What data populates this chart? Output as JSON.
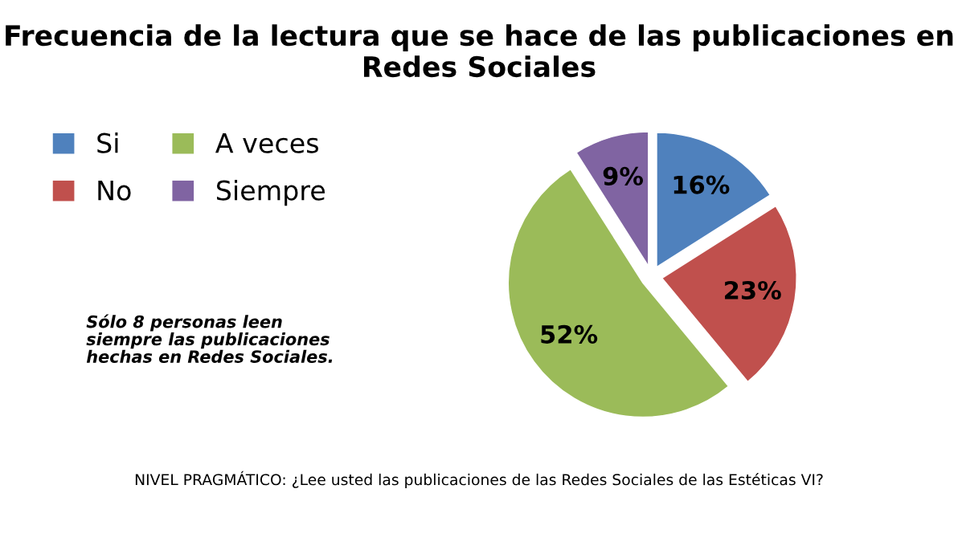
{
  "chart_data": {
    "type": "pie",
    "title": "Frecuencia de la lectura que se hace de las publicaciones en Redes Sociales",
    "categories": [
      "Si",
      "No",
      "A veces",
      "Siempre"
    ],
    "values": [
      16,
      23,
      52,
      9
    ],
    "value_labels": [
      "16%",
      "23%",
      "52%",
      "9%"
    ],
    "colors": [
      "#4f81bd",
      "#c0504d",
      "#9bbb59",
      "#8064a2"
    ],
    "legend": "top left",
    "annotations": [
      "Sólo 8 personas leen siempre las publicaciones hechas en Redes Sociales.",
      "NIVEL PRAGMÁTICO: ¿Lee usted las publicaciones de las Redes Sociales de las Estéticas VI?"
    ]
  }
}
